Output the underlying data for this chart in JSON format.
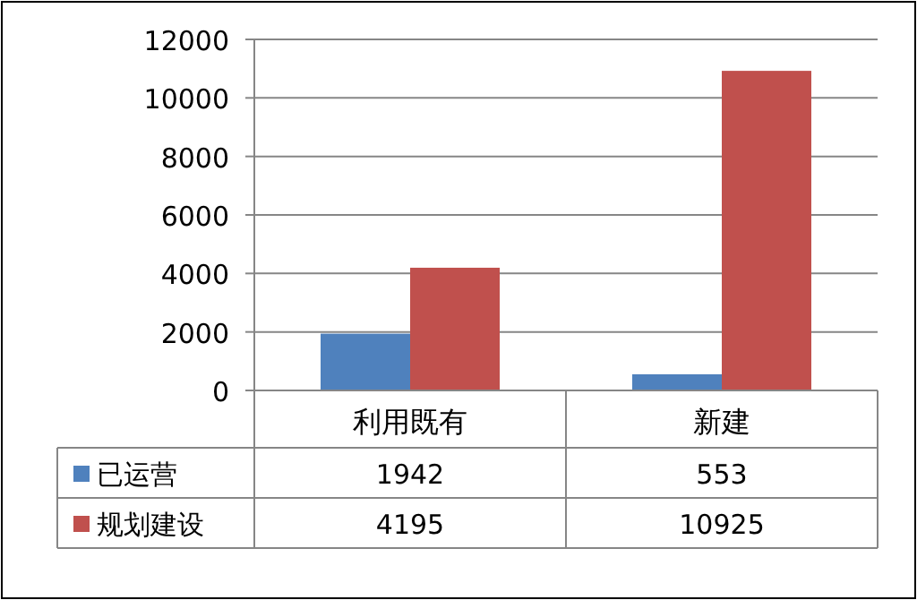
{
  "chart_data": {
    "type": "bar",
    "categories": [
      "利用既有",
      "新建"
    ],
    "series": [
      {
        "name": "已运营",
        "color": "#4f81bd",
        "values": [
          1942,
          553
        ]
      },
      {
        "name": "规划建设",
        "color": "#c0504d",
        "values": [
          4195,
          10925
        ]
      }
    ],
    "ylim": [
      0,
      12000
    ],
    "yticks": [
      0,
      2000,
      4000,
      6000,
      8000,
      10000,
      12000
    ],
    "grid": "y",
    "data_labels": true,
    "legend": "bottom"
  }
}
